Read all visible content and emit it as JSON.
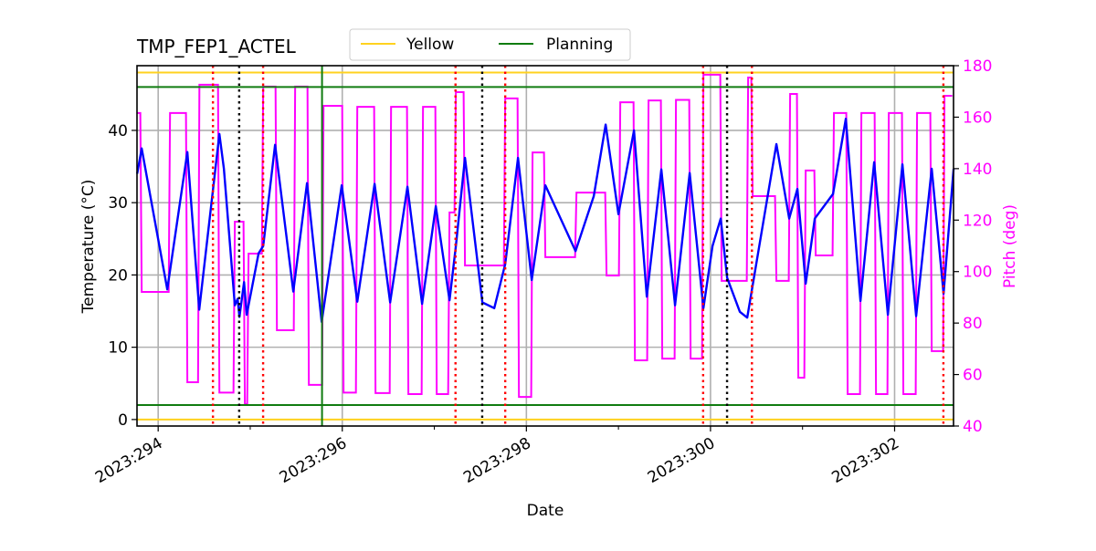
{
  "chart_data": {
    "type": "line",
    "title": "TMP_FEP1_ACTEL",
    "xlabel": "Date",
    "ylabel": "Temperature (°C)",
    "y2label": "Pitch (deg)",
    "xlim": [
      293.77,
      302.64
    ],
    "ylim": [
      -0.9,
      48.95
    ],
    "y2lim": [
      40,
      180
    ],
    "xticks": [
      294,
      296,
      298,
      300,
      302
    ],
    "xtick_labels": [
      "2023:294",
      "2023:296",
      "2023:298",
      "2023:300",
      "2023:302"
    ],
    "x_minor_ticks": [
      295,
      297,
      299,
      301
    ],
    "yticks": [
      0,
      10,
      20,
      30,
      40
    ],
    "yticks_labels": [
      "0",
      "10",
      "20",
      "30",
      "40"
    ],
    "y2ticks": [
      40,
      60,
      80,
      100,
      120,
      140,
      160,
      180
    ],
    "y2ticks_labels": [
      "40",
      "60",
      "80",
      "100",
      "120",
      "140",
      "160",
      "180"
    ],
    "grid": true,
    "legend": {
      "placement": "top-center (above axes)",
      "entries": [
        {
          "name": "Yellow",
          "color": "#ffd21f"
        },
        {
          "name": "Planning",
          "color": "#107c10"
        }
      ]
    },
    "colors": {
      "temperature": "#0000ff",
      "pitch": "#ff00ff",
      "yellow": "#ffd21f",
      "planning": "#107c10",
      "red_vlines": "#ff0000",
      "black_vlines": "#000000",
      "green_vline": "#107c10",
      "y2_axis": "#ff00ff"
    },
    "hlines": [
      {
        "series": "Yellow",
        "y": 0
      },
      {
        "series": "Yellow",
        "y": 48
      },
      {
        "series": "Planning",
        "y": 2
      },
      {
        "series": "Planning",
        "y": 46
      }
    ],
    "vlines": {
      "red_dotted": [
        294.595,
        295.14,
        297.23,
        297.77,
        299.92,
        300.45,
        302.53
      ],
      "black_dotted": [
        294.88,
        297.52,
        300.18
      ],
      "green_solid": [
        295.78
      ]
    },
    "temperature": {
      "x": [
        293.772,
        293.821,
        294.099,
        294.317,
        294.446,
        294.665,
        294.714,
        294.833,
        294.863,
        294.883,
        294.933,
        294.962,
        295.091,
        295.141,
        295.27,
        295.468,
        295.617,
        295.776,
        295.994,
        296.163,
        296.351,
        296.52,
        296.708,
        296.867,
        297.016,
        297.165,
        297.234,
        297.333,
        297.522,
        297.651,
        297.77,
        297.909,
        298.058,
        298.206,
        298.534,
        298.732,
        298.861,
        299.0,
        299.169,
        299.308,
        299.466,
        299.615,
        299.774,
        299.923,
        300.022,
        300.111,
        300.181,
        300.319,
        300.399,
        300.716,
        300.855,
        300.944,
        301.034,
        301.133,
        301.331,
        301.47,
        301.629,
        301.778,
        301.927,
        302.085,
        302.234,
        302.403,
        302.532,
        302.641
      ],
      "y": [
        34.0,
        37.5,
        18.0,
        37.0,
        15.2,
        39.5,
        34.7,
        15.8,
        16.7,
        14.2,
        19.0,
        14.5,
        23.0,
        24.0,
        38.0,
        17.7,
        32.7,
        13.5,
        32.4,
        16.3,
        32.6,
        16.2,
        32.2,
        16.0,
        29.5,
        16.5,
        24.0,
        36.2,
        16.2,
        15.4,
        21.5,
        36.2,
        19.3,
        32.4,
        23.3,
        30.9,
        40.8,
        28.4,
        40.0,
        17.0,
        34.6,
        15.8,
        34.1,
        15.4,
        24.0,
        27.8,
        19.6,
        14.9,
        14.1,
        38.1,
        27.8,
        31.9,
        18.8,
        27.8,
        31.2,
        41.6,
        16.4,
        35.6,
        14.5,
        35.3,
        14.3,
        34.7,
        17.4,
        34.7
      ]
    },
    "pitch_steps": {
      "x": [
        293.772,
        293.821,
        294.129,
        294.317,
        294.448,
        294.665,
        294.833,
        294.942,
        294.982,
        295.141,
        295.29,
        295.488,
        295.637,
        295.796,
        296.014,
        296.163,
        296.361,
        296.53,
        296.718,
        296.877,
        297.026,
        297.165,
        297.234,
        297.333,
        297.77,
        297.919,
        298.067,
        298.206,
        298.544,
        298.871,
        299.02,
        299.179,
        299.327,
        299.476,
        299.625,
        299.784,
        299.923,
        300.121,
        300.409,
        300.458,
        300.716,
        300.865,
        300.954,
        301.034,
        301.143,
        301.341,
        301.49,
        301.639,
        301.798,
        301.937,
        302.095,
        302.244,
        302.403,
        302.542
      ],
      "y": [
        161.6,
        92.1,
        161.6,
        57.0,
        172.6,
        53.0,
        119.4,
        48.5,
        107.0,
        171.9,
        77.2,
        171.9,
        56.0,
        164.4,
        53.0,
        164.0,
        52.8,
        164.0,
        52.4,
        164.0,
        52.4,
        123.0,
        169.7,
        102.4,
        167.3,
        51.3,
        146.3,
        105.6,
        130.7,
        98.5,
        165.8,
        65.5,
        166.5,
        66.2,
        166.7,
        66.2,
        176.5,
        96.4,
        175.4,
        129.3,
        96.4,
        169.0,
        58.8,
        139.3,
        106.3,
        161.6,
        52.4,
        161.6,
        52.4,
        161.6,
        52.4,
        161.6,
        69.1,
        168.3
      ],
      "x_end": 302.641
    }
  }
}
